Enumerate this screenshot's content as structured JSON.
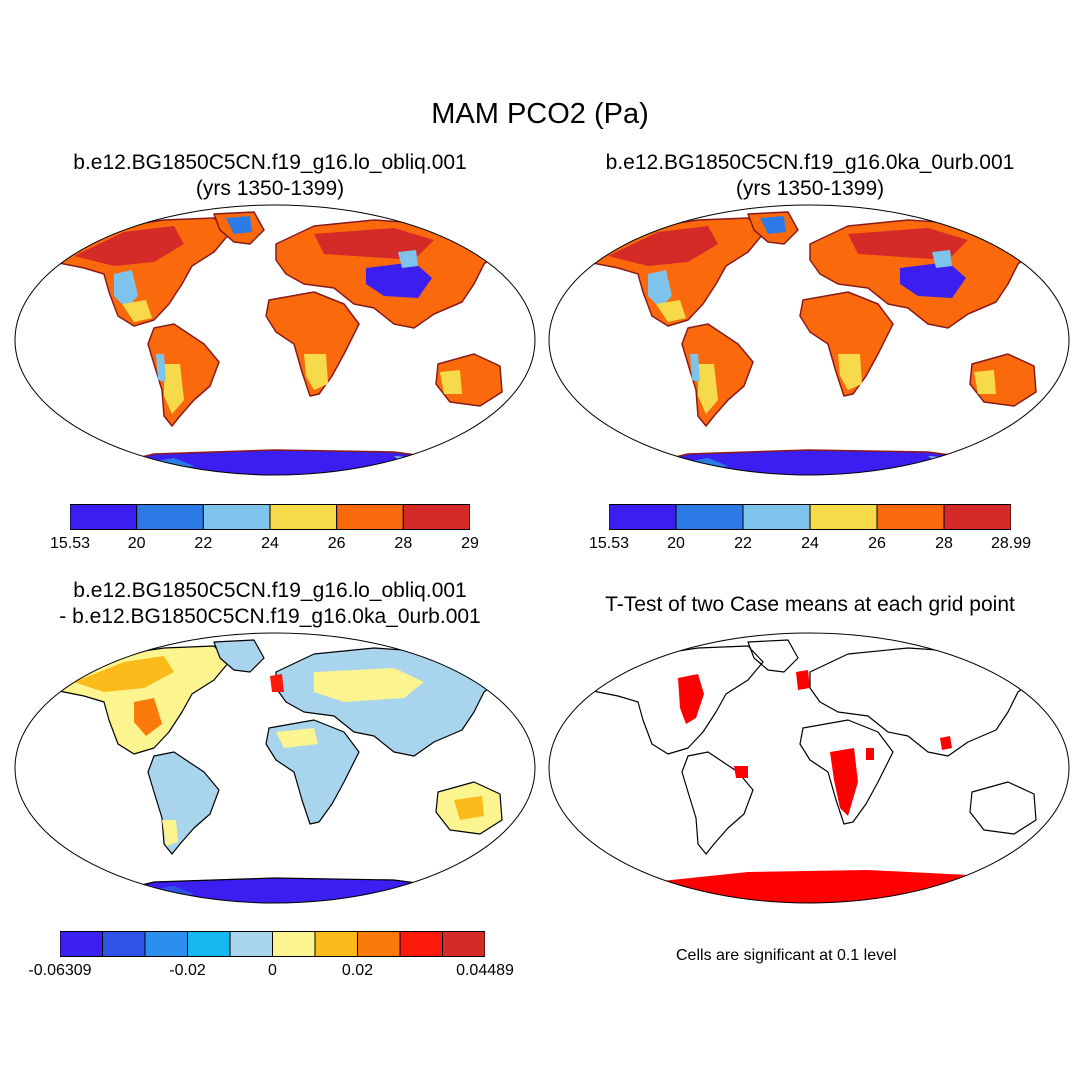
{
  "figure_title": "MAM PCO2 (Pa)",
  "panels": [
    {
      "title_line1": "b.e12.BG1850C5CN.f19_g16.lo_obliq.001",
      "title_line2": "(yrs 1350-1399)",
      "colorbar": {
        "colors": [
          "#3a1ff0",
          "#2b7ae6",
          "#7dc3ec",
          "#f7da4a",
          "#fa6a0d",
          "#d42a28"
        ],
        "tick_labels": [
          "15.53",
          "20",
          "22",
          "24",
          "26",
          "28",
          "29"
        ]
      }
    },
    {
      "title_line1": "b.e12.BG1850C5CN.f19_g16.0ka_0urb.001",
      "title_line2": "(yrs 1350-1399)",
      "colorbar": {
        "colors": [
          "#3a1ff0",
          "#2b7ae6",
          "#7dc3ec",
          "#f7da4a",
          "#fa6a0d",
          "#d42a28"
        ],
        "tick_labels": [
          "15.53",
          "20",
          "22",
          "24",
          "26",
          "28",
          "28.99"
        ]
      }
    },
    {
      "title_line1": "b.e12.BG1850C5CN.f19_g16.lo_obliq.001",
      "title_line2": "- b.e12.BG1850C5CN.f19_g16.0ka_0urb.001",
      "colorbar": {
        "colors": [
          "#3a1ff0",
          "#2e55e6",
          "#2b8ff0",
          "#17b8f2",
          "#a8d4ee",
          "#fcf48e",
          "#fbbb1a",
          "#fa7a0a",
          "#fc1a0a",
          "#d42a28"
        ],
        "tick_labels": [
          "-0.06309",
          "-0.02",
          "0",
          "0.02",
          "0.04489"
        ]
      }
    },
    {
      "title_line1": "T-Test of two Case means at each grid point",
      "footnote": "Cells are significant at 0.1 level"
    }
  ]
}
